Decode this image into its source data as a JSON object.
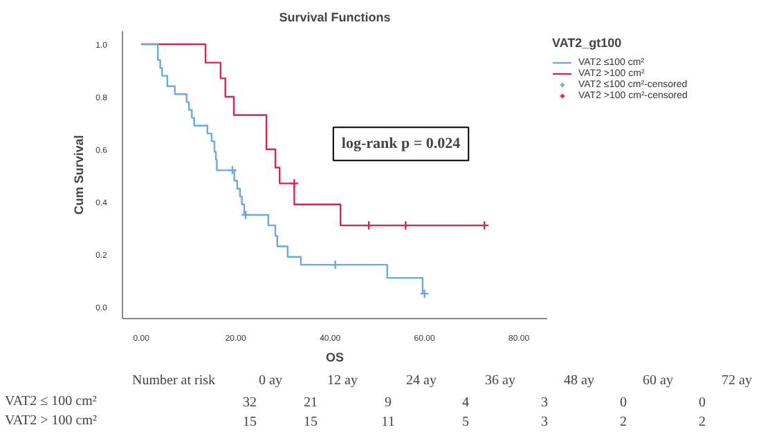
{
  "chart_data": {
    "type": "step",
    "title": "Survival Functions",
    "xlabel": "OS",
    "ylabel": "Cum Survival",
    "legend_title": "VAT2_gt100",
    "legend": "right",
    "grid": false,
    "xlim": [
      -4,
      86
    ],
    "ylim": [
      -0.045,
      1.05
    ],
    "xticks": [
      {
        "value": 0,
        "label": "0.00"
      },
      {
        "value": 20,
        "label": "20.00"
      },
      {
        "value": 40,
        "label": "40.00"
      },
      {
        "value": 60,
        "label": "60.00"
      },
      {
        "value": 80,
        "label": "80.00"
      }
    ],
    "yticks": [
      {
        "value": 0,
        "label": "0.0"
      },
      {
        "value": 0.2,
        "label": "0.2"
      },
      {
        "value": 0.4,
        "label": "0.4"
      },
      {
        "value": 0.6,
        "label": "0.6"
      },
      {
        "value": 0.8,
        "label": "0.8"
      },
      {
        "value": 1.0,
        "label": "1.0"
      }
    ],
    "series": [
      {
        "name": "VAT2 ≤100 cm²",
        "color": "#6fa8dc",
        "x": [
          0,
          3.5,
          4.0,
          4.4,
          5.5,
          7.1,
          9.6,
          10.1,
          10.7,
          11.2,
          14.0,
          14.9,
          15.5,
          15.8,
          16.0,
          19.7,
          20.3,
          20.9,
          21.3,
          21.8,
          26.9,
          28.4,
          28.8,
          31.0,
          33.8,
          52.1,
          59.6
        ],
        "values": [
          1.0,
          0.94,
          0.91,
          0.88,
          0.84,
          0.81,
          0.78,
          0.75,
          0.72,
          0.69,
          0.66,
          0.63,
          0.59,
          0.56,
          0.52,
          0.48,
          0.45,
          0.42,
          0.39,
          0.35,
          0.31,
          0.27,
          0.23,
          0.19,
          0.16,
          0.11,
          0.05
        ]
      },
      {
        "name": "VAT2 >100 cm²",
        "color": "#d6264f",
        "x": [
          0,
          13.6,
          16.8,
          17.8,
          19.6,
          26.5,
          28.4,
          29.3,
          32.4,
          42.2,
          72.7
        ],
        "values": [
          1.0,
          0.93,
          0.87,
          0.8,
          0.73,
          0.6,
          0.53,
          0.47,
          0.39,
          0.31,
          0.31
        ]
      },
      {
        "name": "VAT2 ≤100 cm²-censored",
        "type": "scatter",
        "marker": "cross",
        "color": "#6fa8dc",
        "x": [
          19.3,
          22.1,
          41.1,
          60.0
        ],
        "values": [
          0.52,
          0.35,
          0.16,
          0.05
        ]
      },
      {
        "name": "VAT2 >100 cm²-censored",
        "type": "scatter",
        "marker": "cross",
        "color": "#d6264f",
        "x": [
          32.4,
          48.2,
          56.0,
          72.7
        ],
        "values": [
          0.47,
          0.31,
          0.31,
          0.31
        ]
      }
    ],
    "annotations": [
      "log-rank p = 0.024",
      "Number at risk",
      "0 ay",
      "12 ay",
      "24 ay",
      "36 ay",
      "48 ay",
      "60 ay",
      "72 ay",
      "VAT2 ≤ 100 cm²",
      "32",
      "21",
      "9",
      "4",
      "3",
      "0",
      "0",
      "VAT2 > 100 cm²",
      "15",
      "15",
      "11",
      "5",
      "3",
      "2",
      "2"
    ]
  }
}
